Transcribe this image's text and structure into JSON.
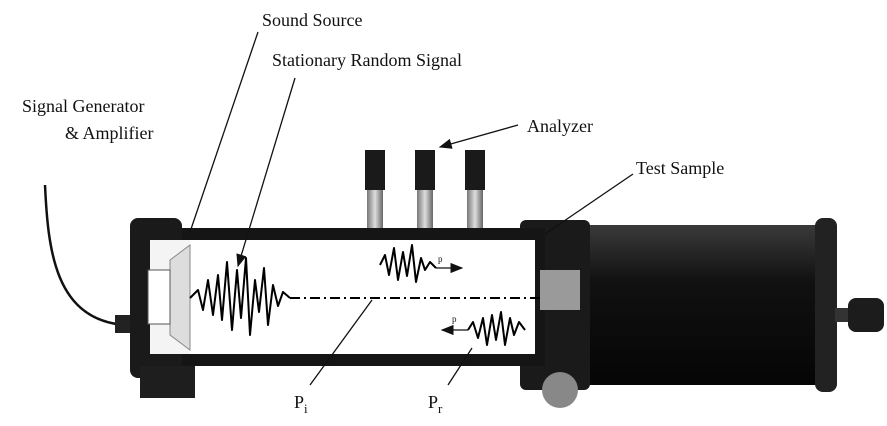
{
  "labels": {
    "sound_source": "Sound Source",
    "random_signal": "Stationary Random Signal",
    "generator": [
      "Signal Generator",
      "& Amplifier"
    ],
    "analyzer": "Analyzer",
    "test_sample": "Test Sample",
    "p_incident": {
      "main": "P",
      "sub": "i"
    },
    "p_reflected": {
      "main": "P",
      "sub": "r"
    },
    "wave_incident": "p",
    "wave_reflected": "p"
  }
}
